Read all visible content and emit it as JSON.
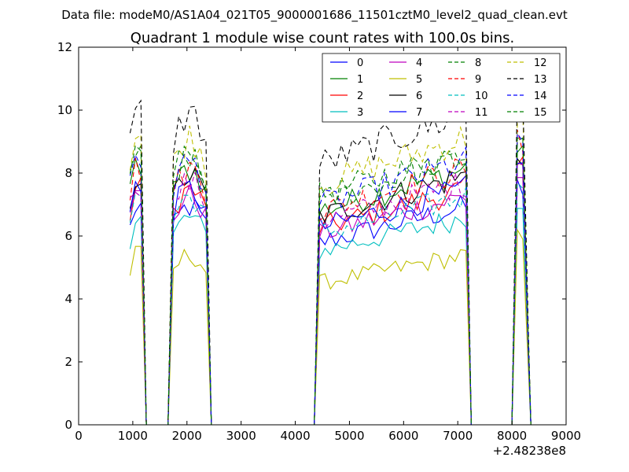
{
  "chart_data": {
    "type": "line",
    "suptitle": "Data file: modeM0/AS1A04_021T05_9000001686_11501cztM0_level2_quad_clean.evt",
    "title": "Quadrant 1 module wise count rates with 100.0s bins.",
    "xlabel": "",
    "ylabel": "",
    "x_offset_label": "+2.48238e8",
    "xlim": [
      0,
      9000
    ],
    "ylim": [
      0,
      12
    ],
    "xticks": [
      0,
      1000,
      2000,
      3000,
      4000,
      5000,
      6000,
      7000,
      8000,
      9000
    ],
    "yticks": [
      0,
      2,
      4,
      6,
      8,
      10,
      12
    ],
    "grid": false,
    "legend_position": "top-right",
    "legend_columns": 4,
    "bin_width_s": 100,
    "base_levels": [
      6.3,
      7.4,
      6.8,
      6.0,
      6.6,
      4.9,
      7.2,
      6.8,
      7.9,
      7.4,
      6.6,
      7.0,
      8.3,
      9.0,
      7.6,
      7.7
    ],
    "segments": [
      {
        "start": 950,
        "end": 1150,
        "shape": "short"
      },
      {
        "start": 1750,
        "end": 2350,
        "shape": "mid"
      },
      {
        "start": 4450,
        "end": 7150,
        "shape": "long"
      },
      {
        "start": 8100,
        "end": 8250,
        "shape": "spike"
      }
    ],
    "series": [
      {
        "name": "0",
        "color": "#0000ff",
        "dash": false
      },
      {
        "name": "1",
        "color": "#008000",
        "dash": false
      },
      {
        "name": "2",
        "color": "#ff0000",
        "dash": false
      },
      {
        "name": "3",
        "color": "#00bfbf",
        "dash": false
      },
      {
        "name": "4",
        "color": "#bf00bf",
        "dash": false
      },
      {
        "name": "5",
        "color": "#bfbf00",
        "dash": false
      },
      {
        "name": "6",
        "color": "#000000",
        "dash": false
      },
      {
        "name": "7",
        "color": "#0000ff",
        "dash": false
      },
      {
        "name": "8",
        "color": "#008000",
        "dash": true
      },
      {
        "name": "9",
        "color": "#ff0000",
        "dash": true
      },
      {
        "name": "10",
        "color": "#00bfbf",
        "dash": true
      },
      {
        "name": "11",
        "color": "#bf00bf",
        "dash": true
      },
      {
        "name": "12",
        "color": "#bfbf00",
        "dash": true
      },
      {
        "name": "13",
        "color": "#000000",
        "dash": true
      },
      {
        "name": "14",
        "color": "#0000ff",
        "dash": true
      },
      {
        "name": "15",
        "color": "#008000",
        "dash": true
      }
    ]
  }
}
